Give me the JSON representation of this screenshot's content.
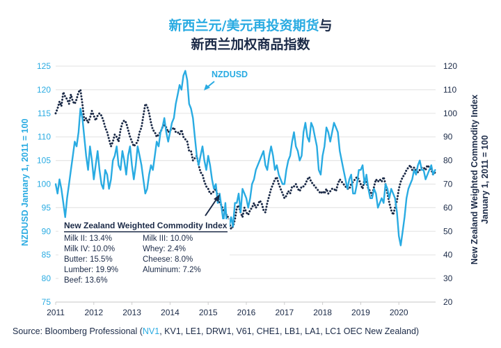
{
  "title": {
    "line1_highlight": "新西兰元/美元再投资期货",
    "line1_rest": "与",
    "line2": "新西兰加权商品指数"
  },
  "colors": {
    "nzdusd": "#29abe2",
    "commodity": "#1b2a47",
    "grid": "#e6e6e6",
    "text_dark": "#1b2a47"
  },
  "source": {
    "prefix": "Source: Bloomberg Professional (",
    "highlight": "NV1",
    "rest": ", KV1, LE1, DRW1, V61, CHE1, LB1, LA1, LC1 OEC New Zealand)"
  },
  "legend_box": {
    "title": "New Zealand Weighted Commodity Index",
    "col1": [
      "Milk II: 13.4%",
      "Milk IV: 10.0%",
      "Butter: 15.5%",
      "Lumber: 19.9%",
      "Beef: 13.6%"
    ],
    "col2": [
      "Milk III: 10.0%",
      "Whey: 2.4%",
      "Cheese: 8.0%",
      "Aluminum: 7.2%"
    ]
  },
  "chart_data": {
    "type": "line",
    "title": "新西兰元/美元再投资期货与新西兰加权商品指数",
    "xlabel": "",
    "x_ticks": [
      "2011",
      "2012",
      "2013",
      "2014",
      "2015",
      "2016",
      "2017",
      "2018",
      "2019",
      "2020"
    ],
    "xlim": [
      2011.0,
      2020.95
    ],
    "y_left": {
      "label": "NZDUSD January 1, 2011 = 100",
      "ticks": [
        75,
        80,
        85,
        90,
        95,
        100,
        105,
        110,
        115,
        120,
        125
      ],
      "lim": [
        75,
        125
      ]
    },
    "y_right": {
      "label_line1": "New Zealand Weighted  Commodity Index",
      "label_line2": "January 1, 2011 = 100",
      "ticks": [
        20,
        30,
        40,
        50,
        60,
        70,
        80,
        90,
        100,
        110,
        120
      ],
      "lim": [
        20,
        120
      ]
    },
    "grid": true,
    "annotations": [
      {
        "text": "NZDUSD",
        "points_to": "NZDUSD series near 2014.8"
      },
      {
        "text": "New Zealand Weighted Commodity Index",
        "points_to": "commodity series near 2015.1"
      }
    ],
    "series": [
      {
        "name": "NZDUSD",
        "axis": "left",
        "style": "solid",
        "x": [
          2011.0,
          2011.05,
          2011.1,
          2011.15,
          2011.2,
          2011.25,
          2011.3,
          2011.35,
          2011.4,
          2011.45,
          2011.5,
          2011.55,
          2011.6,
          2011.65,
          2011.7,
          2011.75,
          2011.8,
          2011.85,
          2011.9,
          2011.95,
          2012.0,
          2012.05,
          2012.1,
          2012.15,
          2012.2,
          2012.25,
          2012.3,
          2012.35,
          2012.4,
          2012.45,
          2012.5,
          2012.55,
          2012.6,
          2012.65,
          2012.7,
          2012.75,
          2012.8,
          2012.85,
          2012.9,
          2012.95,
          2013.0,
          2013.05,
          2013.1,
          2013.15,
          2013.2,
          2013.25,
          2013.3,
          2013.35,
          2013.4,
          2013.45,
          2013.5,
          2013.55,
          2013.6,
          2013.65,
          2013.7,
          2013.75,
          2013.8,
          2013.85,
          2013.9,
          2013.95,
          2014.0,
          2014.05,
          2014.1,
          2014.15,
          2014.2,
          2014.25,
          2014.3,
          2014.35,
          2014.4,
          2014.45,
          2014.5,
          2014.55,
          2014.6,
          2014.65,
          2014.7,
          2014.75,
          2014.8,
          2014.85,
          2014.9,
          2014.95,
          2015.0,
          2015.05,
          2015.1,
          2015.15,
          2015.2,
          2015.25,
          2015.3,
          2015.35,
          2015.4,
          2015.45,
          2015.5,
          2015.55,
          2015.6,
          2015.65,
          2015.7,
          2015.75,
          2015.8,
          2015.85,
          2015.9,
          2015.95,
          2016.0,
          2016.05,
          2016.1,
          2016.15,
          2016.2,
          2016.25,
          2016.3,
          2016.35,
          2016.4,
          2016.45,
          2016.5,
          2016.55,
          2016.6,
          2016.65,
          2016.7,
          2016.75,
          2016.8,
          2016.85,
          2016.9,
          2016.95,
          2017.0,
          2017.05,
          2017.1,
          2017.15,
          2017.2,
          2017.25,
          2017.3,
          2017.35,
          2017.4,
          2017.45,
          2017.5,
          2017.55,
          2017.6,
          2017.65,
          2017.7,
          2017.75,
          2017.8,
          2017.85,
          2017.9,
          2017.95,
          2018.0,
          2018.05,
          2018.1,
          2018.15,
          2018.2,
          2018.25,
          2018.3,
          2018.35,
          2018.4,
          2018.45,
          2018.5,
          2018.55,
          2018.6,
          2018.65,
          2018.7,
          2018.75,
          2018.8,
          2018.85,
          2018.9,
          2018.95,
          2019.0,
          2019.05,
          2019.1,
          2019.15,
          2019.2,
          2019.25,
          2019.3,
          2019.35,
          2019.4,
          2019.45,
          2019.5,
          2019.55,
          2019.6,
          2019.65,
          2019.7,
          2019.75,
          2019.8,
          2019.85,
          2019.9,
          2019.95,
          2020.0,
          2020.05,
          2020.1,
          2020.15,
          2020.2,
          2020.25,
          2020.3,
          2020.35,
          2020.4,
          2020.45,
          2020.5,
          2020.55,
          2020.6,
          2020.65,
          2020.7,
          2020.75,
          2020.8,
          2020.85,
          2020.9,
          2020.95
        ],
        "y": [
          100,
          98,
          101,
          99,
          96,
          93,
          97,
          100,
          103,
          106,
          109,
          108,
          111,
          116,
          114,
          110,
          106,
          103,
          108,
          105,
          101,
          104,
          107,
          103,
          100,
          99,
          103,
          102,
          99,
          101,
          105,
          106,
          108,
          104,
          103,
          107,
          105,
          102,
          106,
          108,
          104,
          101,
          104,
          108,
          106,
          104,
          101,
          98,
          99,
          102,
          104,
          103,
          106,
          109,
          108,
          111,
          112,
          114,
          111,
          109,
          111,
          113,
          114,
          117,
          119,
          121,
          120,
          123,
          124,
          122,
          117,
          116,
          114,
          110,
          106,
          104,
          106,
          108,
          105,
          103,
          106,
          104,
          101,
          99,
          100,
          96,
          98,
          95,
          92,
          96,
          90,
          91,
          93,
          91,
          96,
          96,
          98,
          94,
          99,
          98,
          97,
          95,
          97,
          100,
          101,
          103,
          104,
          105,
          106,
          107,
          104,
          103,
          106,
          108,
          106,
          103,
          104,
          102,
          101,
          100,
          100,
          103,
          105,
          106,
          109,
          111,
          108,
          107,
          105,
          106,
          111,
          113,
          110,
          109,
          113,
          112,
          110,
          108,
          103,
          102,
          106,
          108,
          112,
          111,
          109,
          111,
          113,
          112,
          111,
          107,
          105,
          103,
          101,
          99,
          101,
          102,
          98,
          98,
          100,
          103,
          103,
          104,
          100,
          102,
          99,
          97,
          97,
          99,
          98,
          95,
          96,
          97,
          96,
          100,
          99,
          97,
          99,
          98,
          97,
          94,
          89,
          87,
          90,
          93,
          97,
          99,
          100,
          101,
          103,
          102,
          104,
          105,
          103,
          103,
          101,
          102,
          103,
          104,
          102,
          103
        ]
      },
      {
        "name": "New Zealand Weighted Commodity Index",
        "axis": "right",
        "style": "dotted",
        "x": [
          2011.0,
          2011.05,
          2011.1,
          2011.15,
          2011.2,
          2011.25,
          2011.3,
          2011.35,
          2011.4,
          2011.45,
          2011.5,
          2011.55,
          2011.6,
          2011.65,
          2011.7,
          2011.75,
          2011.8,
          2011.85,
          2011.9,
          2011.95,
          2012.0,
          2012.05,
          2012.1,
          2012.15,
          2012.2,
          2012.25,
          2012.3,
          2012.35,
          2012.4,
          2012.45,
          2012.5,
          2012.55,
          2012.6,
          2012.65,
          2012.7,
          2012.75,
          2012.8,
          2012.85,
          2012.9,
          2012.95,
          2013.0,
          2013.05,
          2013.1,
          2013.15,
          2013.2,
          2013.25,
          2013.3,
          2013.35,
          2013.4,
          2013.45,
          2013.5,
          2013.55,
          2013.6,
          2013.65,
          2013.7,
          2013.75,
          2013.8,
          2013.85,
          2013.9,
          2013.95,
          2014.0,
          2014.05,
          2014.1,
          2014.15,
          2014.2,
          2014.25,
          2014.3,
          2014.35,
          2014.4,
          2014.45,
          2014.5,
          2014.55,
          2014.6,
          2014.65,
          2014.7,
          2014.75,
          2014.8,
          2014.85,
          2014.9,
          2014.95,
          2015.0,
          2015.05,
          2015.1,
          2015.15,
          2015.2,
          2015.25,
          2015.3,
          2015.35,
          2015.4,
          2015.45,
          2015.5,
          2015.55,
          2015.6,
          2015.65,
          2015.7,
          2015.75,
          2015.8,
          2015.85,
          2015.9,
          2015.95,
          2016.0,
          2016.05,
          2016.1,
          2016.15,
          2016.2,
          2016.25,
          2016.3,
          2016.35,
          2016.4,
          2016.45,
          2016.5,
          2016.55,
          2016.6,
          2016.65,
          2016.7,
          2016.75,
          2016.8,
          2016.85,
          2016.9,
          2016.95,
          2017.0,
          2017.05,
          2017.1,
          2017.15,
          2017.2,
          2017.25,
          2017.3,
          2017.35,
          2017.4,
          2017.45,
          2017.5,
          2017.55,
          2017.6,
          2017.65,
          2017.7,
          2017.75,
          2017.8,
          2017.85,
          2017.9,
          2017.95,
          2018.0,
          2018.05,
          2018.1,
          2018.15,
          2018.2,
          2018.25,
          2018.3,
          2018.35,
          2018.4,
          2018.45,
          2018.5,
          2018.55,
          2018.6,
          2018.65,
          2018.7,
          2018.75,
          2018.8,
          2018.85,
          2018.9,
          2018.95,
          2019.0,
          2019.05,
          2019.1,
          2019.15,
          2019.2,
          2019.25,
          2019.3,
          2019.35,
          2019.4,
          2019.45,
          2019.5,
          2019.55,
          2019.6,
          2019.65,
          2019.7,
          2019.75,
          2019.8,
          2019.85,
          2019.9,
          2019.95,
          2020.0,
          2020.05,
          2020.1,
          2020.15,
          2020.2,
          2020.25,
          2020.3,
          2020.35,
          2020.4,
          2020.45,
          2020.5,
          2020.55,
          2020.6,
          2020.65,
          2020.7,
          2020.75,
          2020.8,
          2020.85,
          2020.9,
          2020.95
        ],
        "y": [
          100,
          102,
          105,
          103,
          109,
          107,
          106,
          104,
          108,
          105,
          104,
          106,
          109,
          110,
          104,
          97,
          98,
          96,
          98,
          101,
          99,
          97,
          99,
          100,
          99,
          97,
          94,
          92,
          89,
          86,
          88,
          91,
          90,
          88,
          93,
          96,
          97,
          96,
          93,
          90,
          88,
          86,
          87,
          88,
          92,
          94,
          99,
          104,
          103,
          100,
          96,
          93,
          92,
          90,
          91,
          92,
          94,
          95,
          94,
          92,
          93,
          93,
          94,
          92,
          92,
          91,
          93,
          90,
          89,
          88,
          84,
          84,
          80,
          81,
          82,
          78,
          75,
          74,
          71,
          69,
          68,
          66,
          66,
          67,
          68,
          65,
          62,
          61,
          59,
          57,
          57,
          54,
          51,
          52,
          55,
          60,
          61,
          58,
          56,
          60,
          58,
          57,
          59,
          60,
          62,
          60,
          61,
          63,
          62,
          59,
          58,
          62,
          65,
          68,
          70,
          72,
          73,
          70,
          68,
          66,
          64,
          65,
          67,
          66,
          69,
          69,
          70,
          68,
          67,
          69,
          69,
          70,
          72,
          73,
          71,
          70,
          69,
          68,
          67,
          66,
          67,
          66,
          68,
          66,
          67,
          68,
          68,
          67,
          70,
          72,
          71,
          70,
          69,
          68,
          68,
          70,
          71,
          72,
          73,
          72,
          70,
          68,
          72,
          71,
          68,
          67,
          65,
          69,
          72,
          71,
          72,
          71,
          73,
          70,
          66,
          62,
          59,
          57,
          60,
          63,
          68,
          71,
          73,
          74,
          76,
          77,
          78,
          76,
          77,
          76,
          75,
          76,
          77,
          77,
          76,
          78,
          77,
          76,
          74,
          75
        ]
      }
    ]
  }
}
